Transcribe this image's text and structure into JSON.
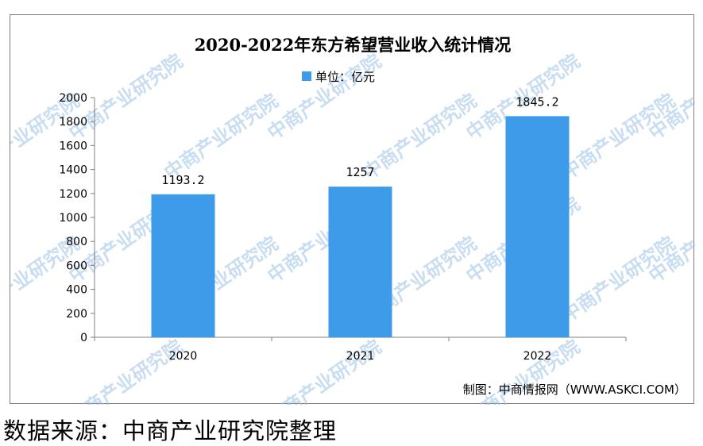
{
  "top_cut_text": "",
  "footer_source": "数据来源：中商产业研究院整理",
  "watermark_text": "中商产业研究院",
  "credit": "制图：中商情报网（WWW.ASKCI.COM）",
  "colors": {
    "bar": "#3d9be9",
    "axis": "#7f7f7f",
    "frame": "#7f7f7f",
    "watermark": "#9ec3e8"
  },
  "chart_data": {
    "type": "bar",
    "title": "2020-2022年东方希望营业收入统计情况",
    "legend": {
      "label": "单位：亿元",
      "placement": "top-center"
    },
    "categories": [
      "2020",
      "2021",
      "2022"
    ],
    "series": [
      {
        "name": "单位：亿元",
        "values": [
          1193.2,
          1257,
          1845.2
        ]
      }
    ],
    "data_labels": [
      "1193.2",
      "1257",
      "1845.2"
    ],
    "ylim": [
      0,
      2000
    ],
    "yticks": [
      0,
      200,
      400,
      600,
      800,
      1000,
      1200,
      1400,
      1600,
      1800,
      2000
    ],
    "xlabel": "",
    "ylabel": "",
    "grid": false
  }
}
